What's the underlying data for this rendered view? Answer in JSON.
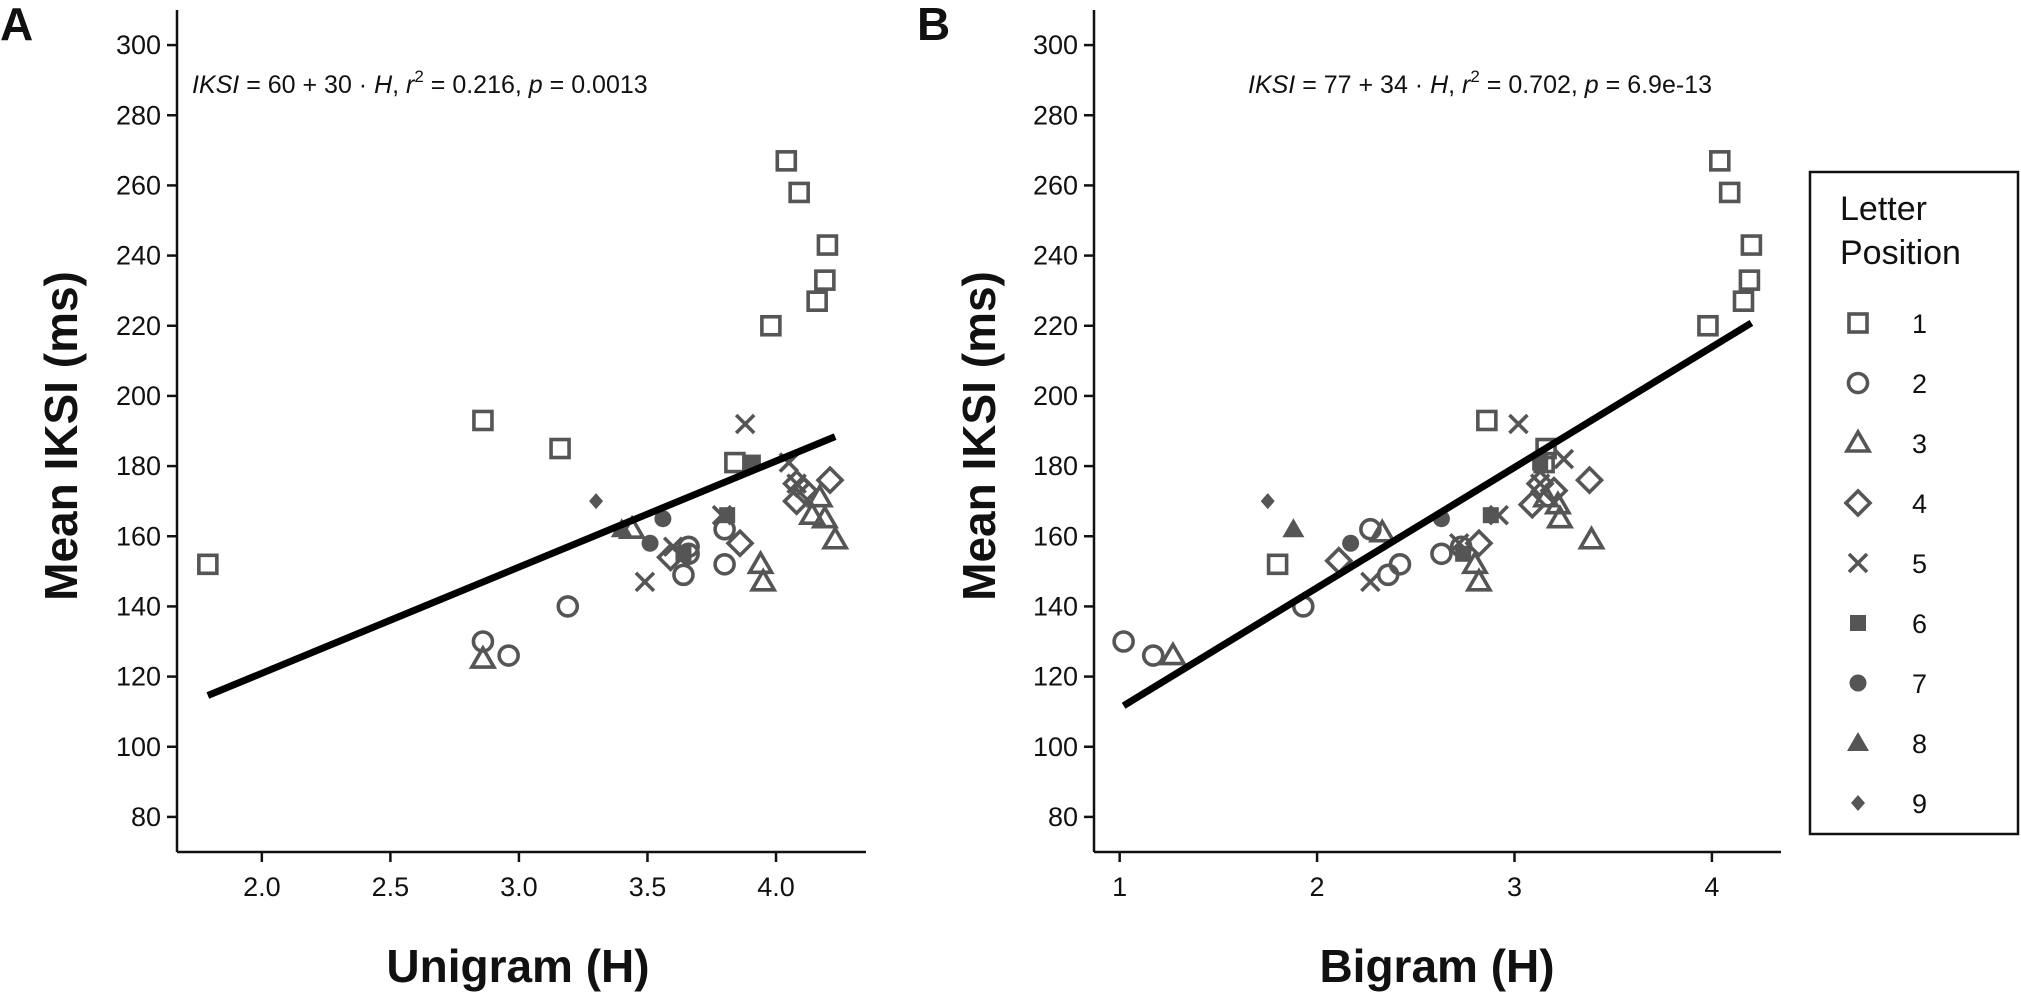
{
  "chart_data": [
    {
      "type": "scatter",
      "panel_label": "A",
      "xlabel": "Unigram (H)",
      "ylabel": "Mean IKSI (ms)",
      "xlim": [
        1.67,
        4.35
      ],
      "ylim": [
        70,
        310
      ],
      "xticks": [
        2.0,
        2.5,
        3.0,
        3.5,
        4.0
      ],
      "xtick_labels": [
        "2.0",
        "2.5",
        "3.0",
        "3.5",
        "4.0"
      ],
      "yticks": [
        80,
        100,
        120,
        140,
        160,
        180,
        200,
        220,
        240,
        260,
        280,
        300
      ],
      "ytick_labels": [
        "80",
        "100",
        "120",
        "140",
        "160",
        "180",
        "200",
        "220",
        "240",
        "260",
        "280",
        "300"
      ],
      "annotation": {
        "ikSI": "IKSI",
        "mid": " = 60 + 30 · ",
        "H": "H",
        "comma1": ", ",
        "r": "r",
        "sup": "2",
        "mid2": " = 0.216, ",
        "p": "p",
        "tail": " = 0.0013"
      },
      "fit_line": {
        "x": [
          1.79,
          4.23
        ],
        "y": [
          114.6,
          188.4
        ]
      },
      "series": [
        {
          "name": "1",
          "marker": "square",
          "points": [
            [
              1.79,
              152
            ],
            [
              2.86,
              193
            ],
            [
              3.16,
              185
            ],
            [
              3.98,
              220
            ],
            [
              4.04,
              267
            ],
            [
              4.09,
              258
            ],
            [
              4.16,
              227
            ],
            [
              4.19,
              233
            ],
            [
              4.2,
              243
            ],
            [
              3.84,
              181
            ]
          ]
        },
        {
          "name": "2",
          "marker": "circle",
          "points": [
            [
              2.86,
              130
            ],
            [
              2.96,
              126
            ],
            [
              3.19,
              140
            ],
            [
              3.64,
              149
            ],
            [
              3.66,
              157
            ],
            [
              3.66,
              155
            ],
            [
              3.8,
              162
            ],
            [
              3.8,
              152
            ]
          ]
        },
        {
          "name": "3",
          "marker": "triangle",
          "points": [
            [
              2.86,
              125
            ],
            [
              3.44,
              162
            ],
            [
              3.95,
              147
            ],
            [
              3.94,
              152
            ],
            [
              4.14,
              166
            ],
            [
              4.17,
              171
            ],
            [
              4.19,
              165
            ],
            [
              4.23,
              159
            ]
          ]
        },
        {
          "name": "4",
          "marker": "diamond",
          "points": [
            [
              3.59,
              154
            ],
            [
              3.86,
              158
            ],
            [
              4.08,
              175
            ],
            [
              4.08,
              170
            ],
            [
              4.11,
              173
            ],
            [
              4.21,
              176
            ]
          ]
        },
        {
          "name": "5",
          "marker": "x",
          "points": [
            [
              3.49,
              147
            ],
            [
              3.6,
              157
            ],
            [
              3.88,
              192
            ],
            [
              3.79,
              166
            ],
            [
              4.05,
              181
            ],
            [
              4.08,
              175
            ]
          ]
        },
        {
          "name": "6",
          "marker": "square-filled",
          "points": [
            [
              3.64,
              155
            ],
            [
              3.81,
              166
            ],
            [
              3.91,
              181
            ]
          ]
        },
        {
          "name": "7",
          "marker": "circle-filled",
          "points": [
            [
              3.51,
              158
            ],
            [
              3.56,
              165
            ]
          ]
        },
        {
          "name": "8",
          "marker": "triangle-filled",
          "points": [
            [
              3.4,
              162
            ]
          ]
        },
        {
          "name": "9",
          "marker": "diamond-filled",
          "points": [
            [
              3.3,
              170
            ]
          ]
        }
      ]
    },
    {
      "type": "scatter",
      "panel_label": "B",
      "xlabel": "Bigram (H)",
      "ylabel": "Mean IKSI (ms)",
      "xlim": [
        0.87,
        4.35
      ],
      "ylim": [
        70,
        310
      ],
      "xticks": [
        1,
        2,
        3,
        4
      ],
      "xtick_labels": [
        "1",
        "2",
        "3",
        "4"
      ],
      "yticks": [
        80,
        100,
        120,
        140,
        160,
        180,
        200,
        220,
        240,
        260,
        280,
        300
      ],
      "ytick_labels": [
        "80",
        "100",
        "120",
        "140",
        "160",
        "180",
        "200",
        "220",
        "240",
        "260",
        "280",
        "300"
      ],
      "annotation": {
        "ikSI": "IKSI",
        "mid": " = 77 + 34 · ",
        "H": "H",
        "comma1": ", ",
        "r": "r",
        "sup": "2",
        "mid2": " = 0.702, ",
        "p": "p",
        "tail": " = 6.9e-13"
      },
      "fit_line": {
        "x": [
          1.02,
          4.2
        ],
        "y": [
          111.7,
          220.8
        ]
      },
      "series": [
        {
          "name": "1",
          "marker": "square",
          "points": [
            [
              1.8,
              152
            ],
            [
              2.86,
              193
            ],
            [
              3.16,
              185
            ],
            [
              3.98,
              220
            ],
            [
              4.04,
              267
            ],
            [
              4.09,
              258
            ],
            [
              4.16,
              227
            ],
            [
              4.19,
              233
            ],
            [
              4.2,
              243
            ],
            [
              3.15,
              181
            ]
          ]
        },
        {
          "name": "2",
          "marker": "circle",
          "points": [
            [
              1.02,
              130
            ],
            [
              1.17,
              126
            ],
            [
              1.93,
              140
            ],
            [
              2.27,
              162
            ],
            [
              2.36,
              149
            ],
            [
              2.42,
              152
            ],
            [
              2.63,
              155
            ],
            [
              2.73,
              157
            ]
          ]
        },
        {
          "name": "3",
          "marker": "triangle",
          "points": [
            [
              1.27,
              126
            ],
            [
              2.33,
              161
            ],
            [
              2.8,
              152
            ],
            [
              2.82,
              147
            ],
            [
              3.16,
              171
            ],
            [
              3.22,
              169
            ],
            [
              3.23,
              165
            ],
            [
              3.39,
              159
            ]
          ]
        },
        {
          "name": "4",
          "marker": "diamond",
          "points": [
            [
              2.11,
              153
            ],
            [
              2.82,
              158
            ],
            [
              3.09,
              169
            ],
            [
              3.13,
              175
            ],
            [
              3.2,
              173
            ],
            [
              3.38,
              176
            ]
          ]
        },
        {
          "name": "5",
          "marker": "x",
          "points": [
            [
              2.27,
              147
            ],
            [
              2.72,
              158
            ],
            [
              3.02,
              192
            ],
            [
              2.92,
              166
            ],
            [
              3.25,
              182
            ],
            [
              3.13,
              175
            ]
          ]
        },
        {
          "name": "6",
          "marker": "square-filled",
          "points": [
            [
              2.74,
              155
            ],
            [
              2.88,
              166
            ],
            [
              3.13,
              181
            ]
          ]
        },
        {
          "name": "7",
          "marker": "circle-filled",
          "points": [
            [
              2.17,
              158
            ],
            [
              2.63,
              165
            ]
          ]
        },
        {
          "name": "8",
          "marker": "triangle-filled",
          "points": [
            [
              1.88,
              162
            ]
          ]
        },
        {
          "name": "9",
          "marker": "diamond-filled",
          "points": [
            [
              1.75,
              170
            ]
          ]
        }
      ]
    }
  ],
  "legend": {
    "title_line1": "Letter",
    "title_line2": "Position",
    "entries": [
      {
        "label": "1",
        "marker": "square"
      },
      {
        "label": "2",
        "marker": "circle"
      },
      {
        "label": "3",
        "marker": "triangle"
      },
      {
        "label": "4",
        "marker": "diamond"
      },
      {
        "label": "5",
        "marker": "x"
      },
      {
        "label": "6",
        "marker": "square-filled"
      },
      {
        "label": "7",
        "marker": "circle-filled"
      },
      {
        "label": "8",
        "marker": "triangle-filled"
      },
      {
        "label": "9",
        "marker": "diamond-filled"
      }
    ]
  },
  "colors": {
    "marker": "#555555",
    "fit_line": "#000000",
    "axis": "#111111"
  }
}
